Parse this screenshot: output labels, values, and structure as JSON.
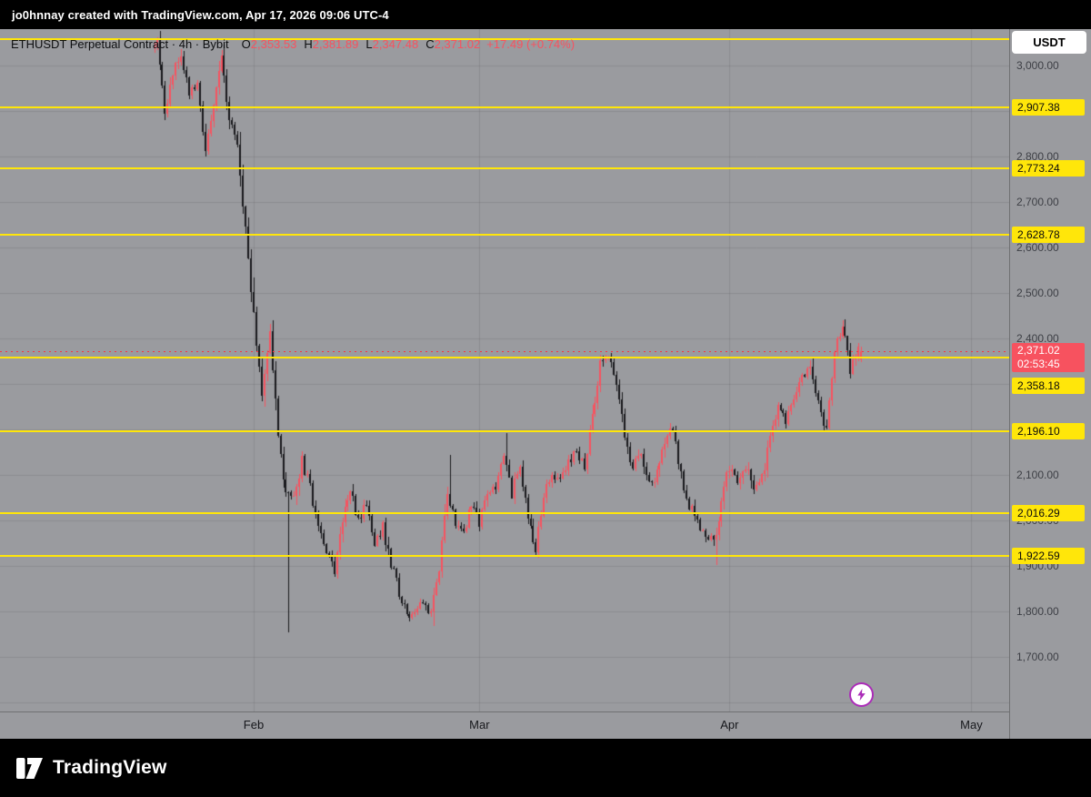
{
  "attribution": "jo0hnnay created with TradingView.com, Apr 17, 2026 09:06 UTC-4",
  "header": {
    "legend": {
      "symbol_title": "ETHUSDT Perpetual Contract · 4h · Bybit",
      "o_label": "O",
      "o_value": "2,353.53",
      "h_label": "H",
      "h_value": "2,381.89",
      "l_label": "L",
      "l_value": "2,347.48",
      "c_label": "C",
      "c_value": "2,371.02",
      "change": "+17.49 (+0.74%)"
    }
  },
  "toolbar": {
    "currency_button": "USDT"
  },
  "price_axis": {
    "labels": [
      {
        "text": "3,000.00",
        "price": 3000
      },
      {
        "text": "2,800.00",
        "price": 2800
      },
      {
        "text": "2,700.00",
        "price": 2700
      },
      {
        "text": "2,600.00",
        "price": 2600
      },
      {
        "text": "2,500.00",
        "price": 2500
      },
      {
        "text": "2,400.00",
        "price": 2400
      },
      {
        "text": "2,100.00",
        "price": 2100
      },
      {
        "text": "2,000.00",
        "price": 2000
      },
      {
        "text": "1,900.00",
        "price": 1900
      },
      {
        "text": "1,800.00",
        "price": 1800
      },
      {
        "text": "1,700.00",
        "price": 1700
      }
    ],
    "level_badges": [
      {
        "text": "2,907.38",
        "price": 2907.38
      },
      {
        "text": "2,773.24",
        "price": 2773.24
      },
      {
        "text": "2,628.78",
        "price": 2628.78
      },
      {
        "text": "2,196.10",
        "price": 2196.1
      },
      {
        "text": "2,016.29",
        "price": 2016.29
      },
      {
        "text": "1,922.59",
        "price": 1922.59
      }
    ],
    "offset_badge": {
      "text": "2,358.18",
      "price": 2358.18
    },
    "current_badge": {
      "price_text": "2,371.02",
      "countdown": "02:53:45",
      "price": 2371.02
    }
  },
  "time_axis": {
    "labels": [
      {
        "text": "Feb",
        "day": 0
      },
      {
        "text": "Mar",
        "day": 28
      },
      {
        "text": "Apr",
        "day": 59
      },
      {
        "text": "May",
        "day": 89
      }
    ]
  },
  "footer": {
    "brand": "TradingView"
  },
  "icons": {
    "quick_trade": "lightning-icon",
    "footer_logo": "tradingview-logo"
  },
  "chart_data": {
    "type": "candlestick",
    "symbol": "ETHUSDT",
    "market": "Perpetual Contract",
    "interval": "4h",
    "exchange": "Bybit",
    "title": "ETHUSDT Perpetual Contract · 4h · Bybit",
    "current_ohlc": {
      "open": 2353.53,
      "high": 2381.89,
      "low": 2347.48,
      "close": 2371.02,
      "change": 17.49,
      "change_pct": 0.74
    },
    "current_price_line": 2371.02,
    "countdown": "02:53:45",
    "visible_price_range": [
      1582,
      3080
    ],
    "x_axis_months": [
      "Feb",
      "Mar",
      "Apr",
      "May"
    ],
    "grid": true,
    "horizontal_lines": [
      3058,
      2907.38,
      2773.24,
      2628.78,
      2358.18,
      2196.1,
      2016.29,
      1922.59
    ],
    "anchors": [
      [
        "Jan 19",
        3010
      ],
      [
        "Jan 20",
        3055
      ],
      [
        "Jan 21",
        2900
      ],
      [
        "Jan 22",
        2975
      ],
      [
        "Jan 23",
        3030
      ],
      [
        "Jan 24",
        2945
      ],
      [
        "Jan 25",
        2955
      ],
      [
        "Jan 26",
        2800
      ],
      [
        "Jan 27",
        2915
      ],
      [
        "Jan 28",
        3020
      ],
      [
        "Jan 29",
        2885
      ],
      [
        "Jan 30",
        2830
      ],
      [
        "Jan 31",
        2640
      ],
      [
        "Feb 1",
        2450
      ],
      [
        "Feb 2",
        2280
      ],
      [
        "Feb 3",
        2420
      ],
      [
        "Feb 4",
        2180
      ],
      [
        "Feb 5",
        2060
      ],
      [
        "Feb 6",
        2045
      ],
      [
        "Feb 7",
        2130
      ],
      [
        "Feb 8",
        2070
      ],
      [
        "Feb 9",
        1990
      ],
      [
        "Feb 10",
        1935
      ],
      [
        "Feb 11",
        1885
      ],
      [
        "Feb 12",
        2005
      ],
      [
        "Feb 13",
        2075
      ],
      [
        "Feb 14",
        1995
      ],
      [
        "Feb 15",
        2035
      ],
      [
        "Feb 16",
        1955
      ],
      [
        "Feb 17",
        1985
      ],
      [
        "Feb 18",
        1905
      ],
      [
        "Feb 19",
        1845
      ],
      [
        "Feb 20",
        1800
      ],
      [
        "Feb 21",
        1795
      ],
      [
        "Feb 22",
        1815
      ],
      [
        "Feb 23",
        1790
      ],
      [
        "Feb 24",
        1900
      ],
      [
        "Feb 25",
        2060
      ],
      [
        "Feb 26",
        2000
      ],
      [
        "Feb 27",
        1965
      ],
      [
        "Feb 28",
        2040
      ],
      [
        "Mar 1",
        1990
      ],
      [
        "Mar 2",
        2055
      ],
      [
        "Mar 3",
        2080
      ],
      [
        "Mar 4",
        2150
      ],
      [
        "Mar 5",
        2060
      ],
      [
        "Mar 6",
        2120
      ],
      [
        "Mar 7",
        2000
      ],
      [
        "Mar 8",
        1940
      ],
      [
        "Mar 9",
        2060
      ],
      [
        "Mar 10",
        2110
      ],
      [
        "Mar 11",
        2085
      ],
      [
        "Mar 12",
        2130
      ],
      [
        "Mar 13",
        2160
      ],
      [
        "Mar 14",
        2110
      ],
      [
        "Mar 15",
        2230
      ],
      [
        "Mar 16",
        2340
      ],
      [
        "Mar 17",
        2370
      ],
      [
        "Mar 18",
        2290
      ],
      [
        "Mar 19",
        2190
      ],
      [
        "Mar 20",
        2110
      ],
      [
        "Mar 21",
        2150
      ],
      [
        "Mar 22",
        2080
      ],
      [
        "Mar 23",
        2100
      ],
      [
        "Mar 24",
        2180
      ],
      [
        "Mar 25",
        2210
      ],
      [
        "Mar 26",
        2100
      ],
      [
        "Mar 27",
        2035
      ],
      [
        "Mar 28",
        1990
      ],
      [
        "Mar 29",
        1965
      ],
      [
        "Mar 30",
        1950
      ],
      [
        "Mar 31",
        2040
      ],
      [
        "Apr 1",
        2120
      ],
      [
        "Apr 2",
        2090
      ],
      [
        "Apr 3",
        2120
      ],
      [
        "Apr 4",
        2060
      ],
      [
        "Apr 5",
        2090
      ],
      [
        "Apr 6",
        2180
      ],
      [
        "Apr 7",
        2255
      ],
      [
        "Apr 8",
        2210
      ],
      [
        "Apr 9",
        2270
      ],
      [
        "Apr 10",
        2320
      ],
      [
        "Apr 11",
        2340
      ],
      [
        "Apr 12",
        2255
      ],
      [
        "Apr 13",
        2205
      ],
      [
        "Apr 14",
        2380
      ],
      [
        "Apr 15",
        2425
      ],
      [
        "Apr 16",
        2330
      ],
      [
        "Apr 17",
        2371.02
      ]
    ],
    "spikes": [
      [
        "Feb 5",
        "low",
        1755
      ],
      [
        "Feb 23",
        "low",
        1768
      ],
      [
        "Feb 25",
        "high",
        2145
      ],
      [
        "Mar 4",
        "high",
        2192
      ],
      [
        "Mar 30",
        "low",
        1903
      ],
      [
        "Apr 15",
        "high",
        2443
      ]
    ],
    "colors": {
      "up": "#f7525f",
      "down": "#17181b",
      "level_line": "#ffe60a",
      "level_badge_bg": "#ffe60a",
      "current_badge_bg": "#f7525f",
      "background": "#9a9b9f",
      "bar_black": "#000000"
    }
  }
}
